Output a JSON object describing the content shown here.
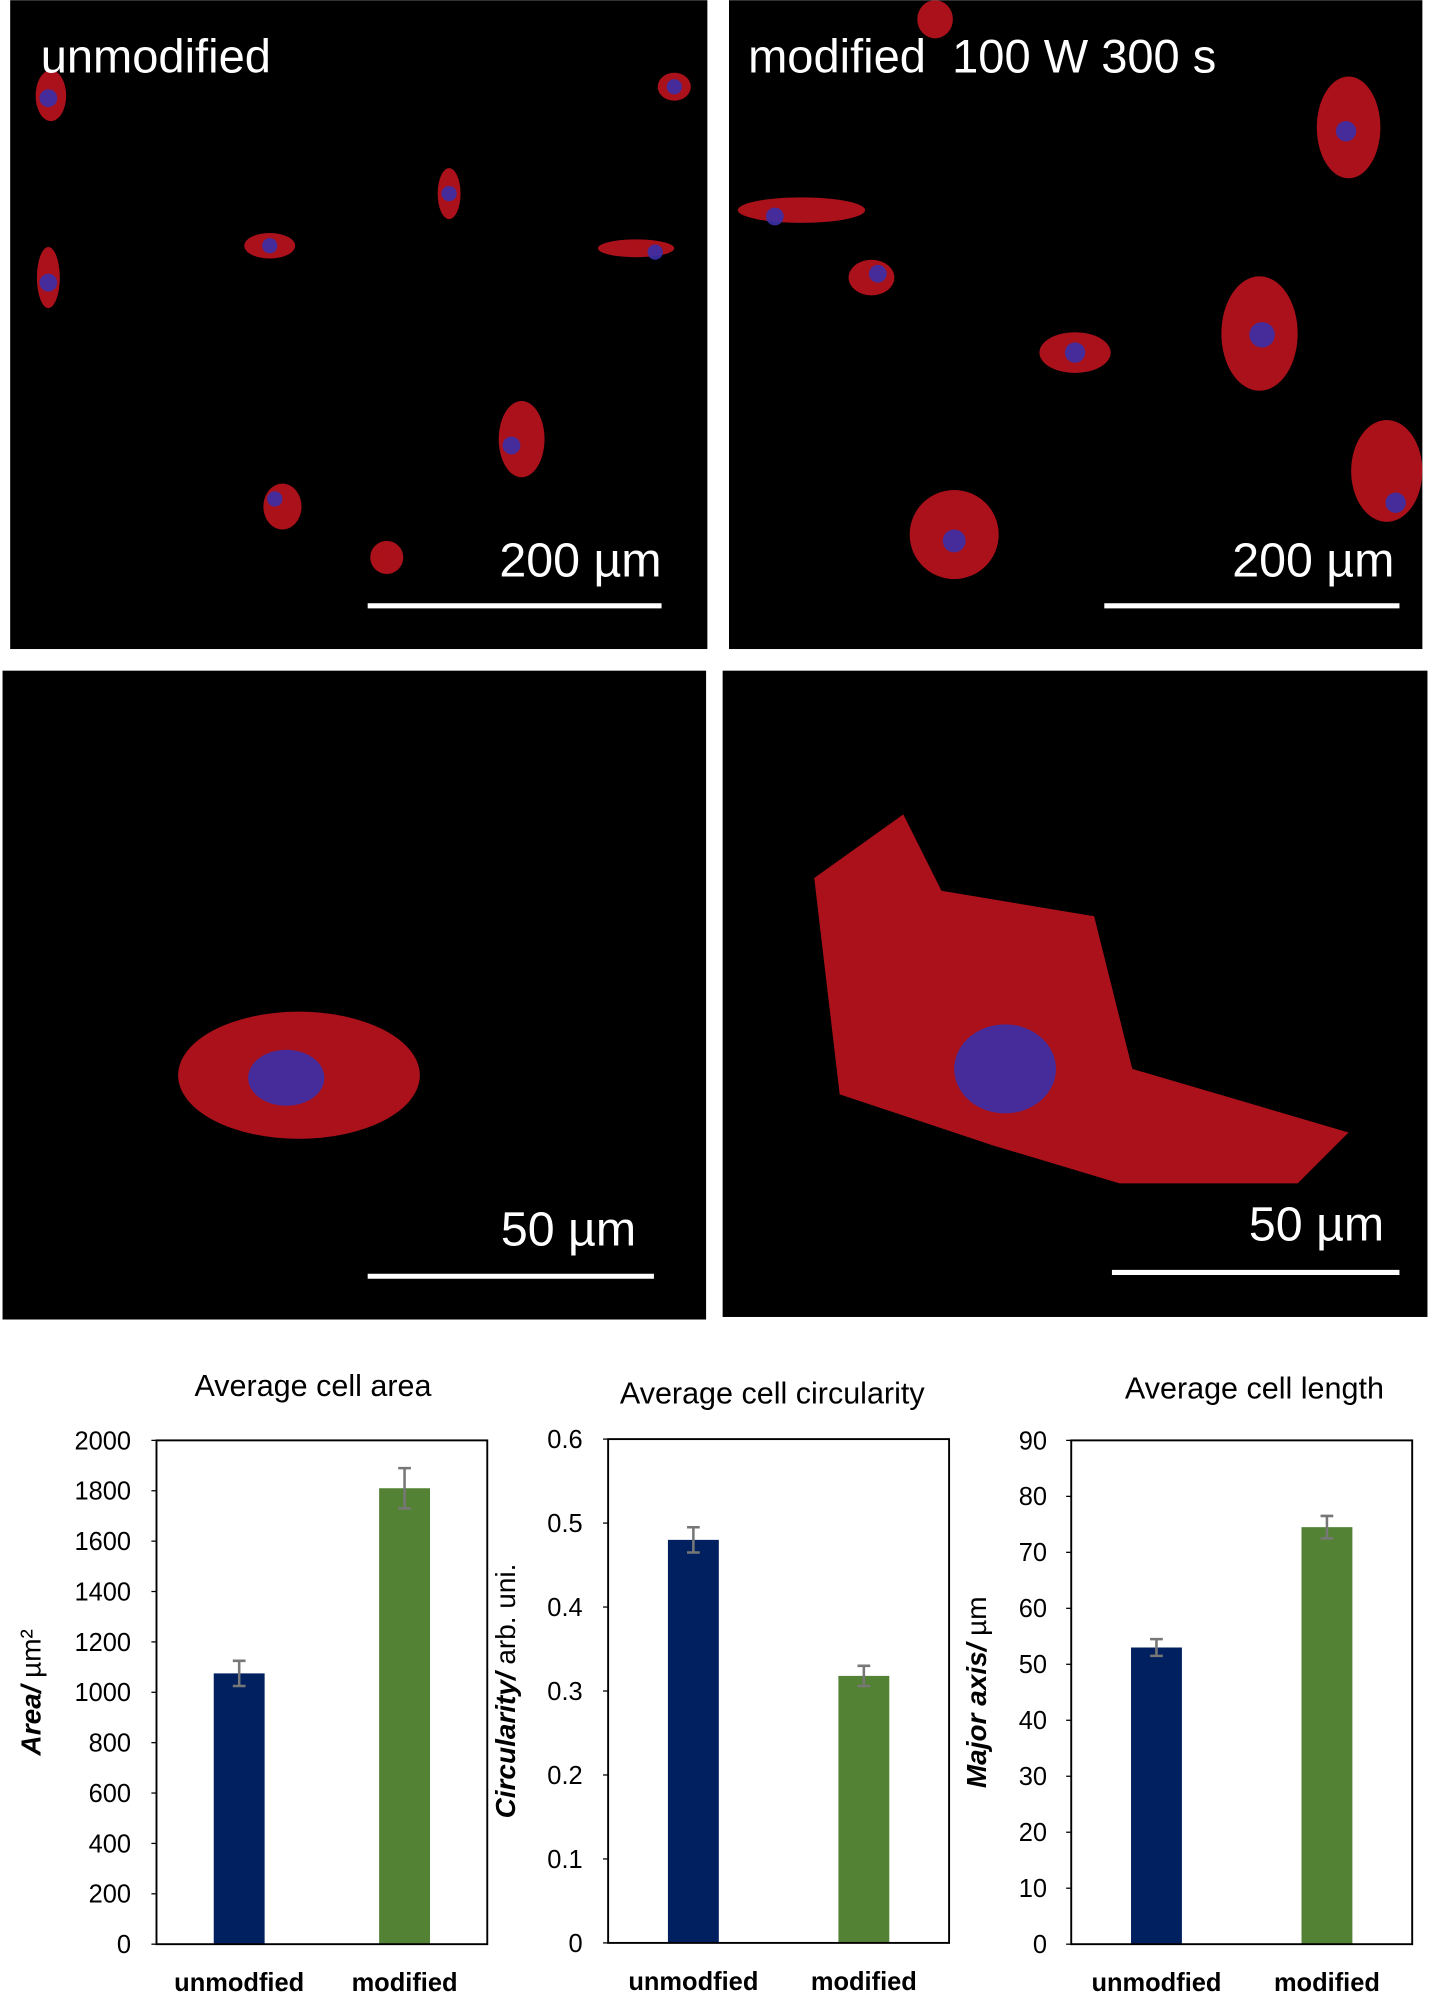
{
  "panels": [
    {
      "label": "unmodified",
      "scale": "200 µm"
    },
    {
      "label": "modified  100 W 300 s",
      "scale": "200 µm"
    },
    {
      "scale": "50 µm"
    },
    {
      "scale": "50 µm"
    }
  ],
  "chart_data": [
    {
      "type": "bar",
      "title": "Average cell area",
      "ylabel": [
        "Area/",
        "µm²"
      ],
      "categories": [
        "unmodfied",
        "modified"
      ],
      "values": [
        1075,
        1810
      ],
      "errors": [
        50,
        80
      ],
      "colors": [
        "#002060",
        "#548235"
      ],
      "ylim": [
        0,
        2000
      ],
      "yticks": [
        0,
        200,
        400,
        600,
        800,
        1000,
        1200,
        1400,
        1600,
        1800,
        2000
      ]
    },
    {
      "type": "bar",
      "title": "Average cell circularity",
      "ylabel": [
        "Circularity/",
        "arb. uni."
      ],
      "categories": [
        "unmodfied",
        "modified"
      ],
      "values": [
        0.48,
        0.318
      ],
      "errors": [
        0.015,
        0.012
      ],
      "colors": [
        "#002060",
        "#548235"
      ],
      "ylim": [
        0,
        0.6
      ],
      "yticks": [
        0,
        0.1,
        0.2,
        0.3,
        0.4,
        0.5,
        0.6
      ]
    },
    {
      "type": "bar",
      "title": "Average cell length",
      "ylabel": [
        "Major axis/",
        "µm"
      ],
      "categories": [
        "unmodfied",
        "modified"
      ],
      "values": [
        53,
        74.5
      ],
      "errors": [
        1.5,
        2
      ],
      "colors": [
        "#002060",
        "#548235"
      ],
      "ylim": [
        0,
        90
      ],
      "yticks": [
        0,
        10,
        20,
        30,
        40,
        50,
        60,
        70,
        80,
        90
      ]
    }
  ]
}
